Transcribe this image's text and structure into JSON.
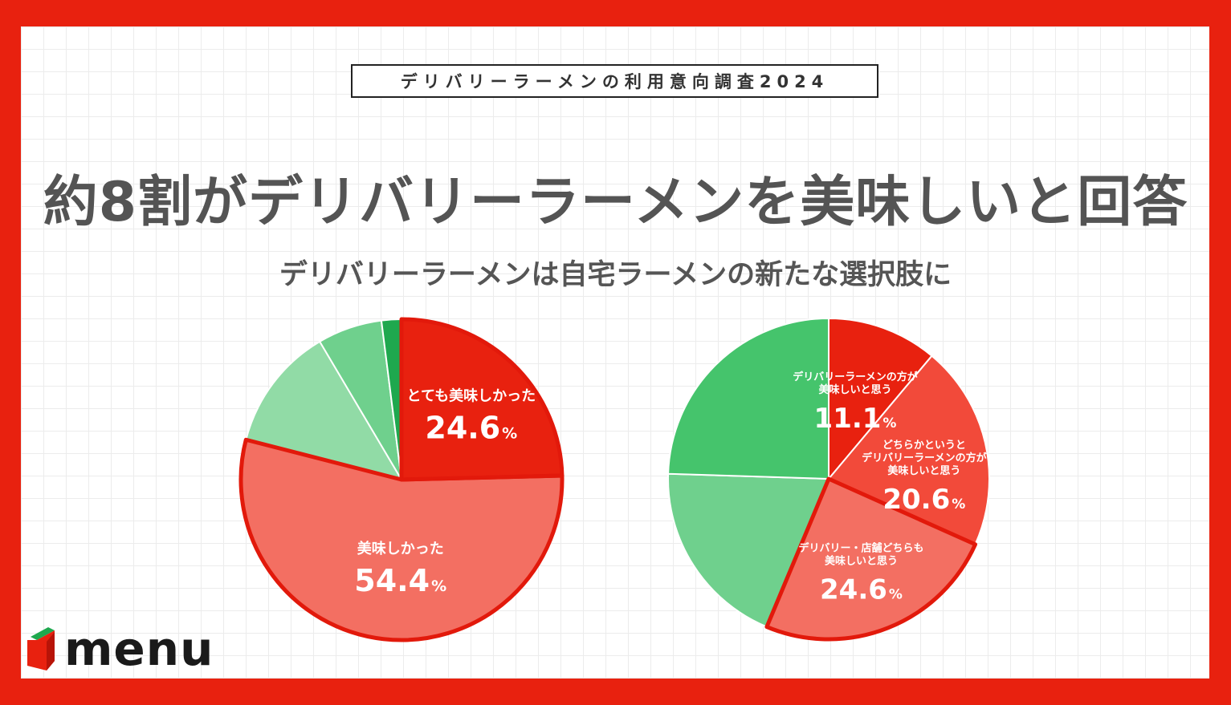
{
  "survey_tag": "デリバリーラーメンの利用意向調査2024",
  "headline": "約8割がデリバリーラーメンを美味しいと回答",
  "subhead": "デリバリーラーメンは自宅ラーメンの新たな選択肢に",
  "brand": {
    "logo_text": "menu",
    "accent": "#e8210f"
  },
  "chart_data": [
    {
      "type": "pie",
      "slices": [
        {
          "label": "とても美味しかった",
          "value": 24.6,
          "display": "24.6",
          "unit": "%",
          "color": "#e8210f"
        },
        {
          "label": "美味しかった",
          "value": 54.4,
          "display": "54.4",
          "unit": "%",
          "color": "#f36f62"
        },
        {
          "label": "",
          "value": 12.5,
          "color": "#91dba6"
        },
        {
          "label": "",
          "value": 6.5,
          "color": "#6fd08d"
        },
        {
          "label": "",
          "value": 2.0,
          "color": "#1ea84e"
        }
      ]
    },
    {
      "type": "pie",
      "slices": [
        {
          "label": "デリバリーラーメンの方が\n美味しいと思う",
          "value": 11.1,
          "display": "11.1",
          "unit": "%",
          "color": "#e8210f"
        },
        {
          "label": "どちらかというと\nデリバリーラーメンの方が\n美味しいと思う",
          "value": 20.6,
          "display": "20.6",
          "unit": "%",
          "color": "#f24a3a"
        },
        {
          "label": "デリバリー・店舗どちらも\n美味しいと思う",
          "value": 24.6,
          "display": "24.6",
          "unit": "%",
          "color": "#f36f62"
        },
        {
          "label": "",
          "value": 19.2,
          "color": "#6fd08d"
        },
        {
          "label": "",
          "value": 24.5,
          "color": "#45c46c"
        }
      ]
    }
  ]
}
